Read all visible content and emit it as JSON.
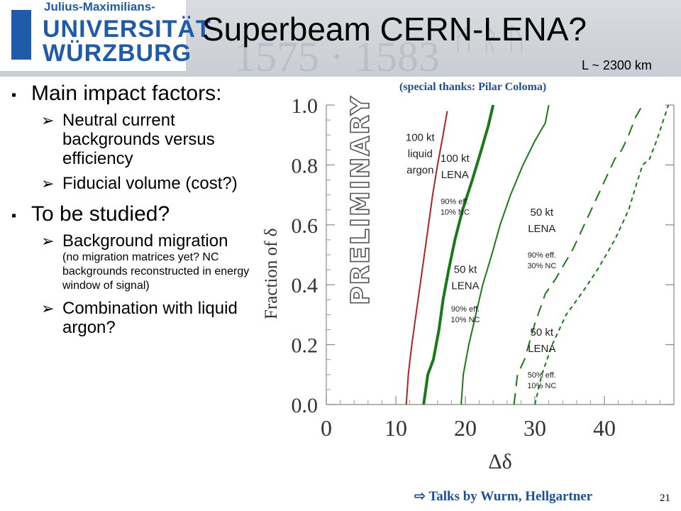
{
  "header": {
    "logo_line1": "Julius-Maximilians-",
    "logo_line2": "UNIVERSITÄT",
    "logo_line3": "WÜRZBURG",
    "title": "Superbeam CERN-LENA?",
    "baseline": "L ~ 2300 km"
  },
  "thanks": "(special thanks: Pilar Coloma)",
  "bullets": [
    {
      "text": "Main impact factors:",
      "subs": [
        {
          "text": "Neutral current backgrounds versus efficiency",
          "small": ""
        },
        {
          "text": "Fiducial volume (cost?)",
          "small": ""
        }
      ]
    },
    {
      "text": "To be studied?",
      "subs": [
        {
          "text": "Background migration",
          "small": "(no migration matrices yet? NC backgrounds reconstructed in energy window of signal)"
        },
        {
          "text": "Combination with liquid argon?",
          "small": ""
        }
      ]
    }
  ],
  "bullet_markers": {
    "level1": "▪",
    "level2": "➢"
  },
  "chart_data": {
    "type": "line",
    "xlabel": "Δδ",
    "ylabel": "Fraction of δ",
    "xlim": [
      0,
      50
    ],
    "ylim": [
      0,
      1.0
    ],
    "x_ticks": [
      "0",
      "10",
      "20",
      "30",
      "40"
    ],
    "y_ticks": [
      "0.0",
      "0.2",
      "0.4",
      "0.6",
      "0.8",
      "1.0"
    ],
    "watermark": "PRELIMINARY",
    "series": [
      {
        "name": "100 kt liquid argon",
        "color": "#b22222",
        "style": "solid",
        "width": 2,
        "points": [
          [
            11.5,
            0.0
          ],
          [
            11.8,
            0.1
          ],
          [
            12.3,
            0.2
          ],
          [
            12.9,
            0.3
          ],
          [
            13.5,
            0.4
          ],
          [
            14.1,
            0.5
          ],
          [
            14.7,
            0.6
          ],
          [
            15.3,
            0.7
          ],
          [
            16.0,
            0.8
          ],
          [
            16.8,
            0.9
          ],
          [
            17.4,
            0.98
          ]
        ]
      },
      {
        "name": "100 kt LENA",
        "color": "#1a7a1a",
        "style": "solid",
        "width": 4,
        "points": [
          [
            14.0,
            0.0
          ],
          [
            14.6,
            0.1
          ],
          [
            15.4,
            0.15
          ],
          [
            16.2,
            0.25
          ],
          [
            16.8,
            0.35
          ],
          [
            17.6,
            0.45
          ],
          [
            18.5,
            0.55
          ],
          [
            19.6,
            0.65
          ],
          [
            21.0,
            0.75
          ],
          [
            22.3,
            0.85
          ],
          [
            23.3,
            0.93
          ],
          [
            24.0,
            1.0
          ]
        ]
      },
      {
        "name": "50 kt LENA",
        "color": "#1a7a1a",
        "style": "solid",
        "width": 2,
        "points": [
          [
            19.4,
            0.0
          ],
          [
            19.7,
            0.1
          ],
          [
            20.5,
            0.2
          ],
          [
            21.5,
            0.3
          ],
          [
            22.5,
            0.4
          ],
          [
            23.8,
            0.5
          ],
          [
            25.0,
            0.6
          ],
          [
            26.5,
            0.7
          ],
          [
            28.3,
            0.8
          ],
          [
            30.0,
            0.88
          ],
          [
            31.5,
            0.94
          ],
          [
            32.0,
            1.0
          ]
        ]
      },
      {
        "name": "50 kt LENA",
        "color": "#1a7a1a",
        "style": "longdash",
        "width": 2,
        "points": [
          [
            27.0,
            0.0
          ],
          [
            27.5,
            0.1
          ],
          [
            28.5,
            0.15
          ],
          [
            30.0,
            0.27
          ],
          [
            31.5,
            0.37
          ],
          [
            33.0,
            0.42
          ],
          [
            35.5,
            0.52
          ],
          [
            37.5,
            0.62
          ],
          [
            39.5,
            0.72
          ],
          [
            41.5,
            0.82
          ],
          [
            42.5,
            0.85
          ],
          [
            43.5,
            0.9
          ],
          [
            44.5,
            0.96
          ],
          [
            45.5,
            1.0
          ]
        ]
      },
      {
        "name": "50 kt LENA",
        "color": "#1a7a1a",
        "style": "shortdash",
        "width": 2,
        "points": [
          [
            30.0,
            0.0
          ],
          [
            31.0,
            0.1
          ],
          [
            32.5,
            0.2
          ],
          [
            34.5,
            0.3
          ],
          [
            37.0,
            0.38
          ],
          [
            39.0,
            0.45
          ],
          [
            41.5,
            0.55
          ],
          [
            43.5,
            0.65
          ],
          [
            44.8,
            0.75
          ],
          [
            45.5,
            0.8
          ],
          [
            46.5,
            0.82
          ],
          [
            47.5,
            0.88
          ],
          [
            48.5,
            0.95
          ],
          [
            49.2,
            1.0
          ]
        ]
      }
    ],
    "annotations": [
      {
        "lines": [
          "100 kt",
          "liquid",
          "argon"
        ],
        "x": 13.5,
        "y": 0.88,
        "size": "big"
      },
      {
        "lines": [
          "100 kt",
          "LENA"
        ],
        "x": 18.5,
        "y": 0.81,
        "size": "big"
      },
      {
        "lines": [
          "90% eff.",
          "10% NC"
        ],
        "x": 18.5,
        "y": 0.67,
        "size": "small"
      },
      {
        "lines": [
          "50 kt",
          "LENA"
        ],
        "x": 31.0,
        "y": 0.63,
        "size": "big"
      },
      {
        "lines": [
          "90% eff.",
          "30% NC"
        ],
        "x": 31.0,
        "y": 0.49,
        "size": "small"
      },
      {
        "lines": [
          "50 kt",
          "LENA"
        ],
        "x": 20.0,
        "y": 0.44,
        "size": "big"
      },
      {
        "lines": [
          "90% eff.",
          "10% NC"
        ],
        "x": 20.0,
        "y": 0.31,
        "size": "small"
      },
      {
        "lines": [
          "50 kt",
          "LENA"
        ],
        "x": 31.0,
        "y": 0.23,
        "size": "big"
      },
      {
        "lines": [
          "50% eff.",
          "10% NC"
        ],
        "x": 31.0,
        "y": 0.09,
        "size": "small"
      }
    ]
  },
  "footer": {
    "talks": "⇨ Talks by Wurm, Hellgartner",
    "page": "21"
  }
}
